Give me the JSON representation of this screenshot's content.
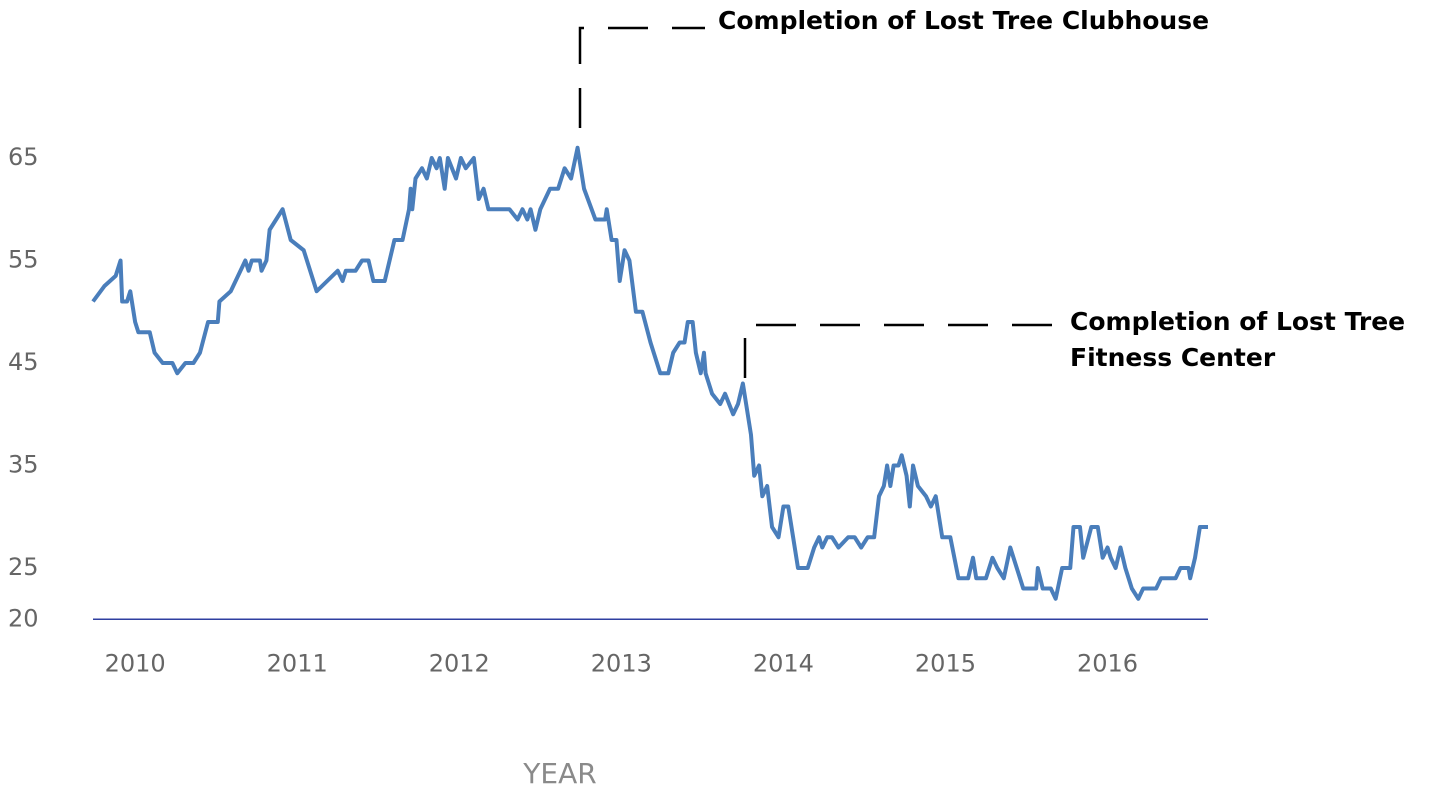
{
  "chart_data": {
    "type": "line",
    "x_label": "YEAR",
    "annotations": [
      {
        "lines": [
          "Completion of Lost Tree Clubhouse"
        ]
      },
      {
        "lines": [
          "Completion of Lost Tree",
          "Fitness Center"
        ]
      }
    ],
    "color": "#4a7ebb",
    "x": [
      2009.74,
      2009.81,
      2009.88,
      2009.91,
      2009.92,
      2009.95,
      2009.97,
      2010.0,
      2010.02,
      2010.09,
      2010.12,
      2010.17,
      2010.23,
      2010.26,
      2010.31,
      2010.36,
      2010.4,
      2010.45,
      2010.51,
      2010.52,
      2010.59,
      2010.65,
      2010.68,
      2010.7,
      2010.72,
      2010.77,
      2010.78,
      2010.81,
      2010.83,
      2010.91,
      2010.96,
      2011.04,
      2011.12,
      2011.25,
      2011.28,
      2011.3,
      2011.36,
      2011.4,
      2011.44,
      2011.47,
      2011.54,
      2011.6,
      2011.65,
      2011.69,
      2011.7,
      2011.71,
      2011.73,
      2011.77,
      2011.8,
      2011.83,
      2011.86,
      2011.88,
      2011.91,
      2011.93,
      2011.98,
      2012.01,
      2012.04,
      2012.09,
      2012.12,
      2012.15,
      2012.18,
      2012.31,
      2012.36,
      2012.39,
      2012.42,
      2012.44,
      2012.47,
      2012.5,
      2012.56,
      2012.61,
      2012.65,
      2012.69,
      2012.73,
      2012.77,
      2012.84,
      2012.9,
      2012.91,
      2012.94,
      2012.97,
      2012.99,
      2013.02,
      2013.05,
      2013.09,
      2013.13,
      2013.18,
      2013.24,
      2013.29,
      2013.32,
      2013.36,
      2013.39,
      2013.41,
      2013.44,
      2013.46,
      2013.49,
      2013.51,
      2013.52,
      2013.56,
      2013.61,
      2013.64,
      2013.69,
      2013.72,
      2013.75,
      2013.77,
      2013.8,
      2013.82,
      2013.85,
      2013.87,
      2013.9,
      2013.93,
      2013.97,
      2014.0,
      2014.03,
      2014.06,
      2014.09,
      2014.15,
      2014.19,
      2014.22,
      2014.24,
      2014.27,
      2014.3,
      2014.34,
      2014.4,
      2014.44,
      2014.48,
      2014.52,
      2014.56,
      2014.59,
      2014.62,
      2014.64,
      2014.66,
      2014.68,
      2014.71,
      2014.73,
      2014.76,
      2014.78,
      2014.8,
      2014.83,
      2014.88,
      2014.91,
      2014.94,
      2014.98,
      2015.03,
      2015.08,
      2015.14,
      2015.17,
      2015.19,
      2015.25,
      2015.29,
      2015.32,
      2015.36,
      2015.4,
      2015.44,
      2015.48,
      2015.56,
      2015.57,
      2015.6,
      2015.65,
      2015.68,
      2015.72,
      2015.77,
      2015.79,
      2015.83,
      2015.85,
      2015.9,
      2015.94,
      2015.97,
      2016.0,
      2016.02,
      2016.05,
      2016.08,
      2016.11,
      2016.15,
      2016.19,
      2016.22,
      2016.3,
      2016.33,
      2016.42,
      2016.45,
      2016.5,
      2016.51,
      2016.54,
      2016.57,
      2016.62
    ],
    "values": [
      51,
      52.5,
      53.5,
      55,
      51,
      51,
      52,
      49,
      48,
      48,
      46,
      45,
      45,
      44,
      45,
      45,
      46,
      49,
      49,
      51,
      52,
      54,
      55,
      54,
      55,
      55,
      54,
      55,
      58,
      60,
      57,
      56,
      52,
      54,
      53,
      54,
      54,
      55,
      55,
      53,
      53,
      57,
      57,
      60,
      62,
      60,
      63,
      64,
      63,
      65,
      64,
      65,
      62,
      65,
      63,
      65,
      64,
      65,
      61,
      62,
      60,
      60,
      59,
      60,
      59,
      60,
      58,
      60,
      62,
      62,
      64,
      63,
      66,
      62,
      59,
      59,
      60,
      57,
      57,
      53,
      56,
      55,
      50,
      50,
      47,
      44,
      44,
      46,
      47,
      47,
      49,
      49,
      46,
      44,
      46,
      44,
      42,
      41,
      42,
      40,
      41,
      43,
      41,
      38,
      34,
      35,
      32,
      33,
      29,
      28,
      31,
      31,
      28,
      25,
      25,
      27,
      28,
      27,
      28,
      28,
      27,
      28,
      28,
      27,
      28,
      28,
      32,
      33,
      35,
      33,
      35,
      35,
      36,
      34,
      31,
      35,
      33,
      32,
      31,
      32,
      28,
      28,
      24,
      24,
      26,
      24,
      24,
      26,
      25,
      24,
      27,
      25,
      23,
      23,
      25,
      23,
      23,
      22,
      25,
      25,
      29,
      29,
      26,
      29,
      29,
      26,
      27,
      26,
      25,
      27,
      25,
      23,
      22,
      23,
      23,
      24,
      24,
      25,
      25,
      24,
      26,
      29,
      29
    ],
    "xlim": [
      2009.74,
      2016.62
    ],
    "xticks": [
      2010,
      2011,
      2012,
      2013,
      2014,
      2015,
      2016
    ],
    "ylim": [
      20,
      70
    ],
    "yticks": [
      20,
      25,
      35,
      45,
      55,
      65
    ]
  }
}
